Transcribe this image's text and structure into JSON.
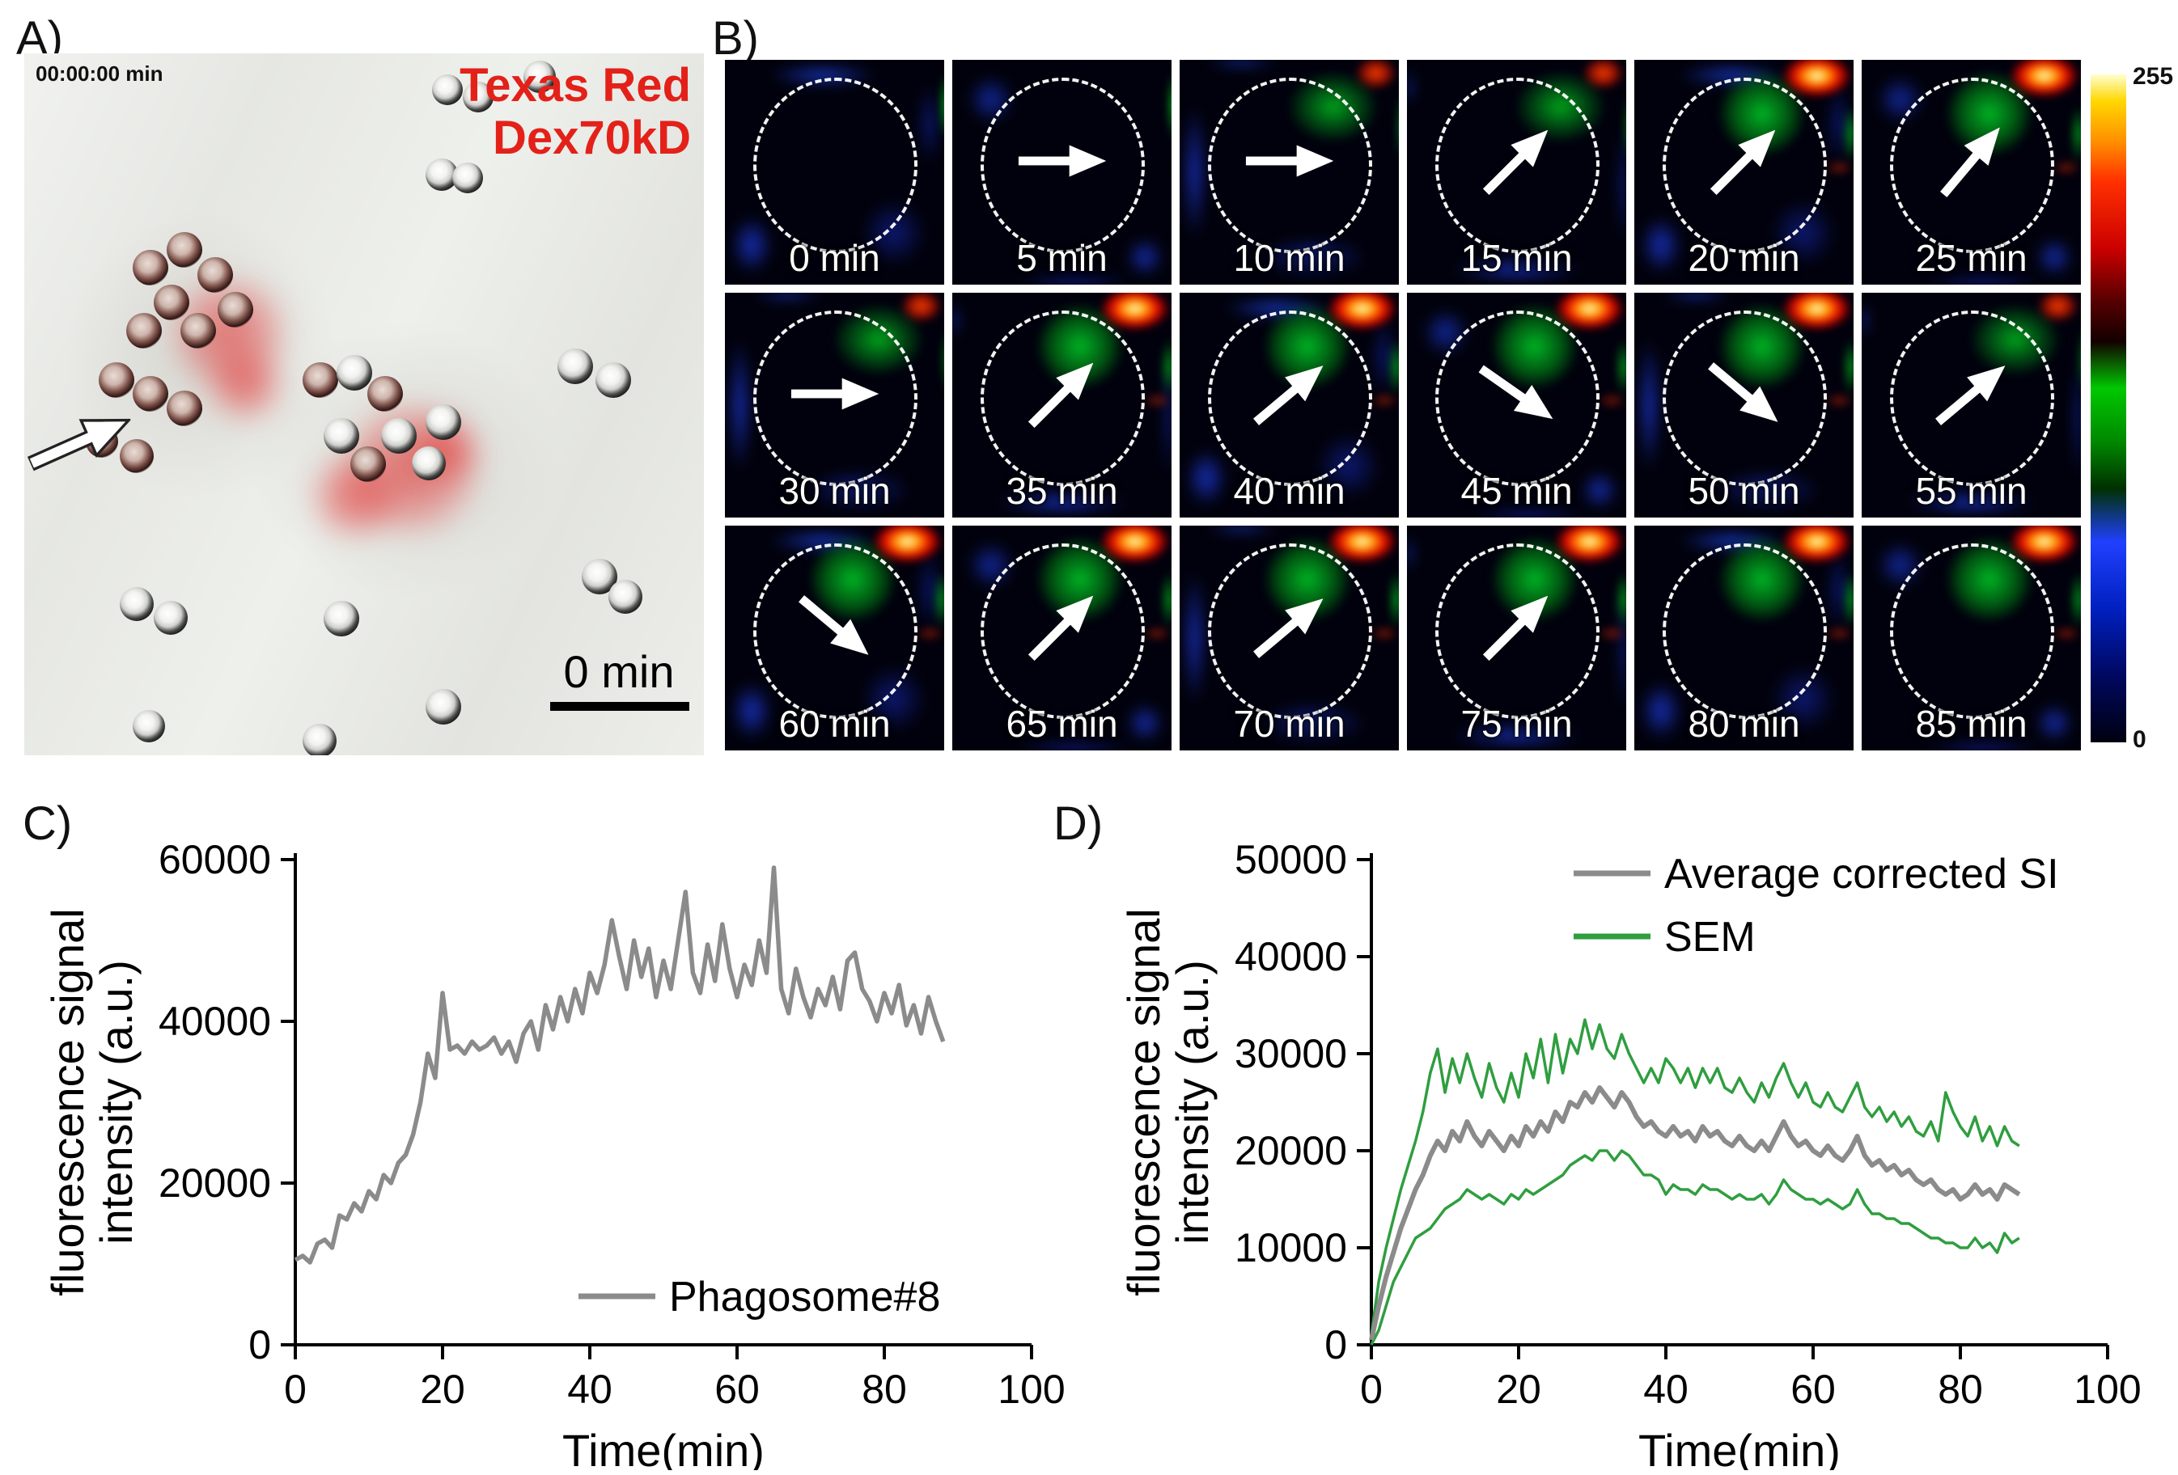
{
  "labels": {
    "a": "A)",
    "b": "B)",
    "c": "C)",
    "d": "D)"
  },
  "panel_a": {
    "timestamp": "00:00:00 min",
    "stain_line1": "Texas Red",
    "stain_line2": "Dex70kD",
    "scale_label": "0 min"
  },
  "panel_b": {
    "colorbar": {
      "max": "255",
      "min": "0",
      "gradient": [
        "#ffffd0 0%",
        "#ffd700 4%",
        "#ff9000 10%",
        "#ff3000 16%",
        "#cc0000 26%",
        "#550000 34%",
        "#140000 40%",
        "#00c800 47%",
        "#008800 55%",
        "#003000 62%",
        "#2040ff 70%",
        "#0020c0 80%",
        "#000860 90%",
        "#000010 100%"
      ]
    },
    "tiles": [
      {
        "label": "0 min",
        "arrow": null,
        "heat": "low"
      },
      {
        "label": "5 min",
        "arrow": 0,
        "heat": "low"
      },
      {
        "label": "10 min",
        "arrow": 0,
        "heat": "med"
      },
      {
        "label": "15 min",
        "arrow": -45,
        "heat": "med"
      },
      {
        "label": "20 min",
        "arrow": -45,
        "heat": "high"
      },
      {
        "label": "25 min",
        "arrow": -50,
        "heat": "high"
      },
      {
        "label": "30 min",
        "arrow": 0,
        "heat": "med"
      },
      {
        "label": "35 min",
        "arrow": -45,
        "heat": "high"
      },
      {
        "label": "40 min",
        "arrow": -40,
        "heat": "high"
      },
      {
        "label": "45 min",
        "arrow": 35,
        "heat": "high"
      },
      {
        "label": "50 min",
        "arrow": 40,
        "heat": "high"
      },
      {
        "label": "55 min",
        "arrow": -40,
        "heat": "med"
      },
      {
        "label": "60 min",
        "arrow": 40,
        "heat": "high"
      },
      {
        "label": "65 min",
        "arrow": -45,
        "heat": "high"
      },
      {
        "label": "70 min",
        "arrow": -40,
        "heat": "high"
      },
      {
        "label": "75 min",
        "arrow": -45,
        "heat": "high"
      },
      {
        "label": "80 min",
        "arrow": null,
        "heat": "high"
      },
      {
        "label": "85 min",
        "arrow": null,
        "heat": "high"
      }
    ]
  },
  "chart_data": [
    {
      "type": "line",
      "title": "",
      "xlabel": "Time(min)",
      "ylabel_lines": [
        "fluorescence signal",
        "intensity (a.u.)"
      ],
      "xlim": [
        0,
        100
      ],
      "ylim": [
        0,
        60000
      ],
      "xticks": [
        0,
        20,
        40,
        60,
        80,
        100
      ],
      "yticks": [
        0,
        20000,
        40000,
        60000
      ],
      "x_start": 0,
      "x_step": 1,
      "legend": [
        {
          "name": "Phagosome#8",
          "color": "#8b8b8b"
        }
      ],
      "series": [
        {
          "name": "Phagosome#8",
          "color": "#8b8b8b",
          "width": 5.5,
          "values": [
            10500,
            11000,
            10200,
            12500,
            13000,
            12000,
            16000,
            15500,
            17500,
            16500,
            19000,
            18000,
            21000,
            20000,
            22500,
            23500,
            26000,
            30000,
            36000,
            33000,
            43500,
            36500,
            37000,
            36000,
            37500,
            36500,
            37000,
            38000,
            36000,
            37500,
            35000,
            38500,
            40000,
            36500,
            42000,
            39000,
            43000,
            40000,
            44000,
            41000,
            46000,
            43500,
            47000,
            52500,
            48000,
            44000,
            50000,
            45500,
            49000,
            43000,
            47500,
            44000,
            50000,
            56000,
            46000,
            43500,
            49500,
            45000,
            52000,
            46500,
            43000,
            47000,
            44500,
            50000,
            46000,
            59000,
            44000,
            41000,
            46500,
            43000,
            40500,
            44000,
            42000,
            45500,
            41500,
            47500,
            48500,
            44000,
            42500,
            40000,
            43500,
            41000,
            44500,
            39500,
            42000,
            38500,
            43000,
            40000,
            37500
          ]
        }
      ]
    },
    {
      "type": "line",
      "title": "",
      "xlabel": "Time(min)",
      "ylabel_lines": [
        "fluorescence signal",
        "intensity (a.u.)"
      ],
      "xlim": [
        0,
        100
      ],
      "ylim": [
        0,
        50000
      ],
      "xticks": [
        0,
        20,
        40,
        60,
        80,
        100
      ],
      "yticks": [
        0,
        10000,
        20000,
        30000,
        40000,
        50000
      ],
      "x_start": 0,
      "x_step": 1,
      "legend": [
        {
          "name": "Average corrected SI",
          "color": "#8b8b8b"
        },
        {
          "name": "SEM",
          "color": "#2f9e3f"
        }
      ],
      "series": [
        {
          "name": "Average corrected SI",
          "color": "#8b8b8b",
          "width": 6,
          "values": [
            500,
            4000,
            7000,
            9500,
            12000,
            14000,
            16000,
            17500,
            19500,
            21000,
            20000,
            22000,
            21000,
            23000,
            21500,
            20500,
            22000,
            21000,
            20000,
            21500,
            20500,
            22500,
            21500,
            23000,
            22000,
            24000,
            23000,
            25000,
            24500,
            26000,
            25000,
            26500,
            25500,
            24500,
            26000,
            25000,
            23500,
            22500,
            23000,
            22000,
            21500,
            22500,
            21500,
            22000,
            21000,
            22500,
            21500,
            22000,
            21000,
            20500,
            21500,
            20500,
            20000,
            21000,
            20000,
            21500,
            23000,
            21500,
            20500,
            21000,
            20000,
            19500,
            20500,
            19500,
            19000,
            20000,
            21500,
            19500,
            18500,
            19000,
            18000,
            18500,
            17500,
            18000,
            17000,
            16500,
            17000,
            16000,
            15500,
            16000,
            15000,
            15500,
            16500,
            15500,
            16000,
            15000,
            16500,
            16000,
            15500
          ]
        },
        {
          "name": "SEM upper",
          "color": "#2f9e3f",
          "width": 3.5,
          "values": [
            1000,
            6500,
            10000,
            13000,
            16000,
            18500,
            21000,
            24000,
            28000,
            30500,
            26000,
            29500,
            27000,
            30000,
            27500,
            25500,
            29000,
            26500,
            25000,
            28000,
            25500,
            30000,
            27500,
            31500,
            27000,
            32000,
            28000,
            31500,
            30000,
            33500,
            30500,
            33000,
            30500,
            29500,
            32000,
            30000,
            28500,
            27000,
            28500,
            27000,
            29500,
            28500,
            27000,
            28500,
            26500,
            28500,
            27000,
            28500,
            26500,
            26000,
            27500,
            26000,
            25000,
            27000,
            25500,
            27500,
            29000,
            27000,
            25500,
            27000,
            25000,
            24500,
            26000,
            24500,
            24000,
            25500,
            27000,
            24500,
            23500,
            24500,
            23000,
            24000,
            22500,
            23500,
            22000,
            21500,
            23000,
            21000,
            26000,
            24000,
            22500,
            21500,
            23500,
            21000,
            22500,
            20500,
            22500,
            21000,
            20500
          ]
        },
        {
          "name": "SEM lower",
          "color": "#2f9e3f",
          "width": 3.5,
          "values": [
            0,
            1500,
            4000,
            6500,
            8000,
            9500,
            11000,
            11500,
            12000,
            13000,
            14000,
            14500,
            15000,
            16000,
            15500,
            15000,
            15500,
            15000,
            14500,
            15500,
            15000,
            16000,
            15500,
            16000,
            16500,
            17000,
            17500,
            18500,
            19000,
            19500,
            19000,
            20000,
            20000,
            19000,
            20000,
            19500,
            18500,
            17500,
            17500,
            17000,
            15500,
            16500,
            16000,
            16000,
            15500,
            16500,
            16000,
            16000,
            15500,
            15000,
            15500,
            15000,
            15000,
            15500,
            14500,
            15500,
            17000,
            16000,
            15500,
            15000,
            15000,
            14500,
            15000,
            14500,
            14000,
            14500,
            16000,
            14500,
            13500,
            13500,
            13000,
            13000,
            12500,
            12500,
            12000,
            11500,
            11000,
            11000,
            10500,
            10500,
            10000,
            10000,
            11000,
            10000,
            10500,
            9500,
            11500,
            10500,
            11000
          ]
        }
      ]
    }
  ]
}
